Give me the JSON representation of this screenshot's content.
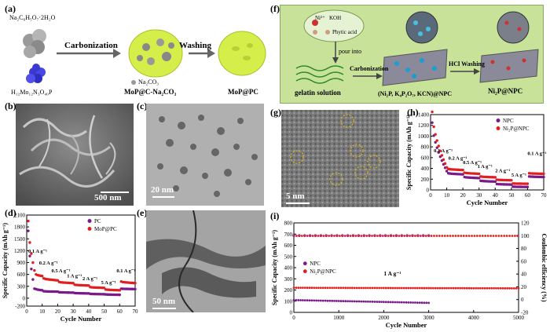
{
  "panels": {
    "a": "(a)",
    "b": "(b)",
    "c": "(c)",
    "d": "(d)",
    "e": "(e)",
    "f": "(f)",
    "g": "(g)",
    "h": "(h)",
    "i": "(i)"
  },
  "schematic_a": {
    "precursor1": "Na₂C₆H₅O₇·2H₂O",
    "precursor2": "H₁₂Mo₁₂N₃O₄₀P",
    "step1": "Carbonization",
    "step2": "Washing",
    "byproduct": "Na₂CO₃",
    "intermediate": "MoP@C-Na₂CO₃",
    "product": "MoP@PC"
  },
  "schematic_f": {
    "ion1": "Ni²⁺",
    "ion2": "KOH",
    "acid": "Phytic acid",
    "pour": "pour into",
    "solution": "gelatin solution",
    "step1": "Carbonization",
    "step2": "HCl Washing",
    "intermediate": "(Ni₂P, K₄P₂O₇, KCN)@NPC",
    "product": "Ni₂P@NPC"
  },
  "scalebars": {
    "b": "500 nm",
    "c": "20 nm",
    "e": "50 nm",
    "g": "5 nm"
  },
  "colors": {
    "pc": "#7a1a8a",
    "mop": "#e02020",
    "npc": "#7a1a8a",
    "ni2p": "#e02020",
    "schematic_bg": "#c8e29a",
    "carbon": "#d5ee4a"
  },
  "chart_data": [
    {
      "id": "d",
      "type": "scatter",
      "xlabel": "Cycle Number",
      "ylabel": "Specific Capacity (mAh g⁻¹)",
      "xlim": [
        0,
        70
      ],
      "ylim": [
        -200,
        2100
      ],
      "yticks": [
        2100,
        1800,
        1500,
        1200,
        900,
        600,
        300,
        0,
        -200
      ],
      "xticks": [
        0,
        10,
        20,
        30,
        40,
        50,
        60,
        70
      ],
      "legend": [
        "PC",
        "MoP@PC"
      ],
      "legend_position": "upper-right",
      "rate_labels": [
        "0.1 A g⁻¹",
        "0.2 A g⁻¹",
        "0.5 A g⁻¹",
        "1 A g⁻¹",
        "2 A g⁻¹",
        "5 A g⁻¹",
        "0.1 A g⁻¹"
      ],
      "series": [
        {
          "name": "PC",
          "segments": [
            [
              1,
              1700,
              5,
              240
            ],
            [
              6,
              230,
              10,
              200
            ],
            [
              11,
              175,
              20,
              165
            ],
            [
              21,
              150,
              30,
              140
            ],
            [
              31,
              130,
              40,
              120
            ],
            [
              41,
              110,
              50,
              100
            ],
            [
              51,
              95,
              60,
              85
            ],
            [
              61,
              240,
              70,
              230
            ]
          ]
        },
        {
          "name": "MoP@PC",
          "segments": [
            [
              1,
              1950,
              5,
              700
            ],
            [
              6,
              600,
              10,
              560
            ],
            [
              11,
              500,
              20,
              450
            ],
            [
              21,
              410,
              30,
              380
            ],
            [
              31,
              340,
              40,
              320
            ],
            [
              41,
              280,
              50,
              260
            ],
            [
              51,
              220,
              60,
              200
            ],
            [
              61,
              420,
              70,
              380
            ]
          ]
        }
      ]
    },
    {
      "id": "h",
      "type": "scatter",
      "xlabel": "Cycle Number",
      "ylabel": "Specific Capacity (mAh g⁻¹)",
      "xlim": [
        0,
        70
      ],
      "ylim": [
        0,
        1400
      ],
      "yticks": [
        0,
        200,
        400,
        600,
        800,
        1000,
        1200,
        1400
      ],
      "xticks": [
        0,
        10,
        20,
        30,
        40,
        50,
        60,
        70
      ],
      "legend": [
        "NPC",
        "Ni₂P@NPC"
      ],
      "legend_position": "upper-right",
      "rate_labels": [
        "0.1 A g⁻¹",
        "0.2 A g⁻¹",
        "0.5 A g⁻¹",
        "1 A g⁻¹",
        "2 A g⁻¹",
        "5 A g⁻¹",
        "0.1 A g⁻¹"
      ],
      "series": [
        {
          "name": "NPC",
          "segments": [
            [
              1,
              1250,
              10,
              350
            ],
            [
              11,
              310,
              20,
              290
            ],
            [
              21,
              240,
              30,
              220
            ],
            [
              31,
              170,
              40,
              155
            ],
            [
              41,
              110,
              50,
              100
            ],
            [
              51,
              60,
              60,
              55
            ],
            [
              61,
              250,
              70,
              240
            ]
          ]
        },
        {
          "name": "Ni₂P@NPC",
          "segments": [
            [
              1,
              1450,
              10,
              420
            ],
            [
              11,
              390,
              20,
              370
            ],
            [
              21,
              320,
              30,
              300
            ],
            [
              31,
              250,
              40,
              235
            ],
            [
              41,
              190,
              50,
              180
            ],
            [
              51,
              120,
              60,
              115
            ],
            [
              61,
              310,
              70,
              300
            ]
          ]
        }
      ]
    },
    {
      "id": "i",
      "type": "scatter",
      "xlabel": "Cycle Number",
      "ylabel": "Specific Capacity (mAh g⁻¹)",
      "y2label": "Coulombic efficiency (%)",
      "xlim": [
        0,
        5000
      ],
      "ylim": [
        0,
        800
      ],
      "y2lim": [
        -20,
        120
      ],
      "xticks": [
        0,
        1000,
        2000,
        3000,
        4000,
        5000
      ],
      "yticks": [
        0,
        100,
        200,
        300,
        400,
        500,
        600,
        700,
        800
      ],
      "y2ticks": [
        -20,
        0,
        20,
        40,
        60,
        80,
        100,
        120
      ],
      "legend": [
        "NPC",
        "Ni₂P@NPC"
      ],
      "annotation": "1 A g⁻¹",
      "series": [
        {
          "name": "NPC",
          "capacity_start": 110,
          "capacity_end": 85,
          "x_end": 3000
        },
        {
          "name": "Ni₂P@NPC",
          "capacity_start": 220,
          "capacity_end": 215,
          "x_end": 5000
        },
        {
          "name": "NPC CE",
          "efficiency": 99.5,
          "x_end": 3000
        },
        {
          "name": "Ni₂P@NPC CE",
          "efficiency": 99.7,
          "x_end": 5000
        }
      ]
    }
  ]
}
